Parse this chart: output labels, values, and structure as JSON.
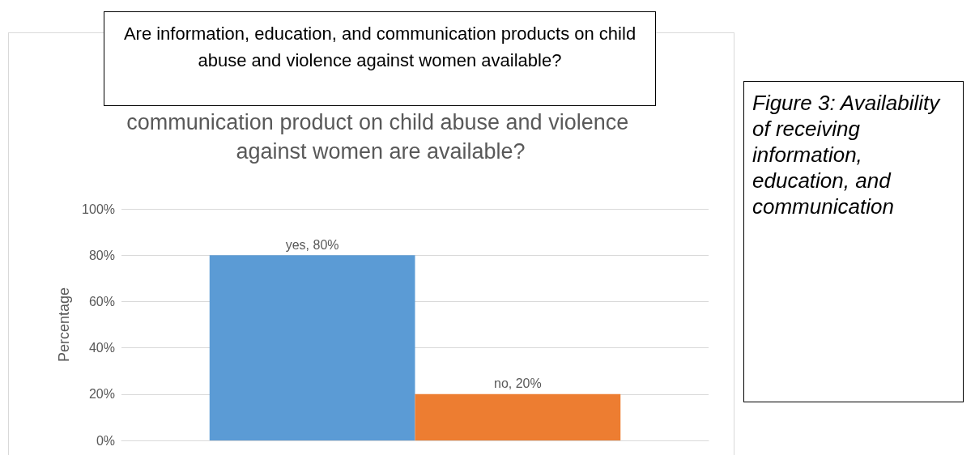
{
  "chart_data": {
    "type": "bar",
    "title": "Are information, education, and communication products on child abuse and violence against women available?",
    "subtitle": "communication product on child abuse and violence against women are available?",
    "ylabel": "Percentage",
    "annotations": [
      "Figure 3: Availability of receiving information, education, and communication"
    ],
    "categories": [
      null
    ],
    "series": [
      {
        "color": "#5b9bd5",
        "values": [
          80
        ],
        "value_labels": [
          "yes, 80%"
        ]
      },
      {
        "color": "#ed7d31",
        "values": [
          20
        ],
        "value_labels": [
          "no, 20%"
        ]
      }
    ],
    "ylim": [
      0,
      100
    ],
    "yticks": [
      {
        "value": 0,
        "label": "0%"
      },
      {
        "value": 20,
        "label": "20%"
      },
      {
        "value": 40,
        "label": "40%"
      },
      {
        "value": 60,
        "label": "60%"
      },
      {
        "value": 80,
        "label": "80%"
      },
      {
        "value": 100,
        "label": "100%"
      }
    ],
    "grid": "y"
  }
}
